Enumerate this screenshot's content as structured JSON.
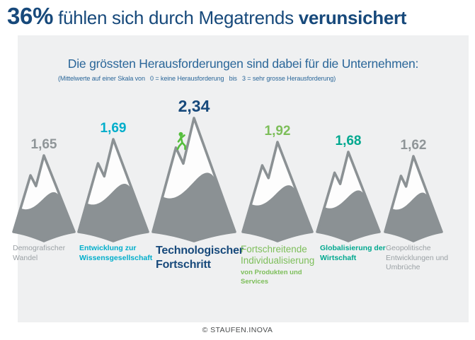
{
  "header": {
    "percent": "36%",
    "middle": " fühlen sich durch Megatrends ",
    "emphasis": "verunsichert"
  },
  "panel": {
    "title": "Die grössten Herausforderungen sind dabei für die Unternehmen:",
    "scale_note": "(Mittelwerte auf einer Skala von   0 = keine Herausforderung   bis   3 = sehr grosse Herausforderung)"
  },
  "mountains": [
    {
      "value": 1.65,
      "value_label": "1,65",
      "value_color": "#8F9598",
      "label_lines": [
        "Demografischer",
        "Wandel"
      ],
      "label_color": "#9BA1A5",
      "icon": "mountain-icon"
    },
    {
      "value": 1.69,
      "value_label": "1,69",
      "value_color": "#00AECB",
      "label_lines": [
        "Entwicklung zur",
        "Wissensgesellschaft"
      ],
      "label_color": "#00AECB",
      "icon": "mountain-icon"
    },
    {
      "value": 2.34,
      "value_label": "2,34",
      "value_color": "#17497B",
      "label_lines": [
        "Technologischer",
        "Fortschritt"
      ],
      "label_color": "#17497B",
      "icon": "mountain-icon",
      "overlay_icon": "climber-icon"
    },
    {
      "value": 1.92,
      "value_label": "1,92",
      "value_color": "#7DBE5A",
      "label_lines": [
        "Fortschreitende",
        "Individualisierung"
      ],
      "sub_lines": [
        "von Produkten und",
        "Services"
      ],
      "label_color": "#7DBE5A",
      "icon": "mountain-icon"
    },
    {
      "value": 1.68,
      "value_label": "1,68",
      "value_color": "#00A88F",
      "label_lines": [
        "Globalisierung der",
        "Wirtschaft"
      ],
      "label_color": "#00A88F",
      "icon": "mountain-icon"
    },
    {
      "value": 1.62,
      "value_label": "1,62",
      "value_color": "#8F9598",
      "label_lines": [
        "Geopolitische",
        "Entwicklungen und",
        "Umbrüche"
      ],
      "label_color": "#9BA1A5",
      "icon": "mountain-icon"
    }
  ],
  "footer": {
    "copyright": "© STAUFEN.INOVA"
  },
  "colors": {
    "headline_navy": "#17497B",
    "subtitle_blue": "#2A6699",
    "panel_bg": "#EFF0F1",
    "mountain_gray": "#8B9194",
    "snow_white": "#FDFDFD",
    "climber_green": "#55BE3C",
    "cyan": "#00AECB",
    "teal": "#00A88F",
    "green": "#7DBE5A",
    "gray_text": "#9BA1A5",
    "footer_gray": "#4A4C4D"
  },
  "chart_data": {
    "type": "bar",
    "variant": "pictorial-mountains",
    "title": "Die grössten Herausforderungen sind dabei für die Unternehmen:",
    "subtitle": "(Mittelwerte auf einer Skala von 0 = keine Herausforderung bis 3 = sehr grosse Herausforderung)",
    "headline": "36% fühlen sich durch Megatrends verunsichert",
    "categories": [
      "Demografischer Wandel",
      "Entwicklung zur Wissensgesellschaft",
      "Technologischer Fortschritt",
      "Fortschreitende Individualisierung von Produkten und Services",
      "Globalisierung der Wirtschaft",
      "Geopolitische Entwicklungen und Umbrüche"
    ],
    "values": [
      1.65,
      1.69,
      2.34,
      1.92,
      1.68,
      1.62
    ],
    "value_labels": [
      "1,65",
      "1,69",
      "2,34",
      "1,92",
      "1,68",
      "1,62"
    ],
    "ylim": [
      0,
      3
    ],
    "xlabel": "",
    "ylabel": "",
    "grid": false,
    "legend": false,
    "highlighted_max": "Technologischer Fortschritt",
    "source": "© STAUFEN.INOVA"
  }
}
